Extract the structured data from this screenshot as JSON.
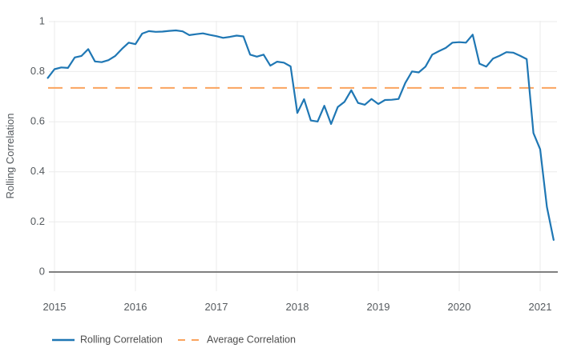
{
  "chart": {
    "y_axis": {
      "title": "Rolling Correlation",
      "ticks": [
        "1",
        "0.8",
        "0.6",
        "0.4",
        "0.2",
        "0"
      ]
    },
    "x_axis": {
      "ticks": [
        "2015",
        "2016",
        "2017",
        "2018",
        "2019",
        "2020",
        "2021"
      ]
    },
    "legend": {
      "rolling_label": "Rolling Correlation",
      "average_label": "Average Correlation"
    },
    "colors": {
      "rolling_line": "#1f77b4",
      "average_line": "#faa45e",
      "gridline": "#ebebeb",
      "axis_line": "#808080",
      "tick_text": "#555a5e"
    }
  },
  "chart_data": {
    "type": "line",
    "title": "",
    "xlabel": "",
    "ylabel": "Rolling Correlation",
    "ylim": [
      -0.08,
      1.0
    ],
    "xlim": [
      2014.92,
      2021.21
    ],
    "grid": true,
    "legend_position": "bottom",
    "series": [
      {
        "name": "Rolling Correlation",
        "color": "#1f77b4",
        "style": "solid",
        "x": [
          "2014-12",
          "2015-01",
          "2015-02",
          "2015-03",
          "2015-04",
          "2015-05",
          "2015-06",
          "2015-07",
          "2015-08",
          "2015-09",
          "2015-10",
          "2015-11",
          "2015-12",
          "2016-01",
          "2016-02",
          "2016-03",
          "2016-04",
          "2016-05",
          "2016-06",
          "2016-07",
          "2016-08",
          "2016-09",
          "2016-10",
          "2016-11",
          "2016-12",
          "2017-01",
          "2017-02",
          "2017-03",
          "2017-04",
          "2017-05",
          "2017-06",
          "2017-07",
          "2017-08",
          "2017-09",
          "2017-10",
          "2017-11",
          "2017-12",
          "2018-01",
          "2018-02",
          "2018-03",
          "2018-04",
          "2018-05",
          "2018-06",
          "2018-07",
          "2018-08",
          "2018-09",
          "2018-10",
          "2018-11",
          "2018-12",
          "2019-01",
          "2019-02",
          "2019-03",
          "2019-04",
          "2019-05",
          "2019-06",
          "2019-07",
          "2019-08",
          "2019-09",
          "2019-10",
          "2019-11",
          "2019-12",
          "2020-01",
          "2020-02",
          "2020-03",
          "2020-04",
          "2020-05",
          "2020-06",
          "2020-07",
          "2020-08",
          "2020-09",
          "2020-10",
          "2020-11",
          "2020-12",
          "2021-01",
          "2021-02",
          "2021-03"
        ],
        "values": [
          0.775,
          0.81,
          0.817,
          0.815,
          0.857,
          0.863,
          0.89,
          0.841,
          0.838,
          0.846,
          0.863,
          0.891,
          0.916,
          0.91,
          0.952,
          0.962,
          0.959,
          0.96,
          0.963,
          0.965,
          0.961,
          0.946,
          0.95,
          0.953,
          0.947,
          0.942,
          0.935,
          0.939,
          0.944,
          0.941,
          0.868,
          0.86,
          0.868,
          0.824,
          0.84,
          0.836,
          0.821,
          0.635,
          0.69,
          0.605,
          0.601,
          0.664,
          0.591,
          0.659,
          0.68,
          0.726,
          0.675,
          0.668,
          0.691,
          0.671,
          0.687,
          0.688,
          0.691,
          0.755,
          0.801,
          0.797,
          0.82,
          0.868,
          0.882,
          0.895,
          0.916,
          0.918,
          0.916,
          0.948,
          0.832,
          0.82,
          0.852,
          0.864,
          0.878,
          0.876,
          0.864,
          0.85,
          0.555,
          0.49,
          0.26,
          0.128
        ]
      },
      {
        "name": "Average Correlation",
        "color": "#faa45e",
        "style": "dashed",
        "value": 0.735
      }
    ]
  }
}
